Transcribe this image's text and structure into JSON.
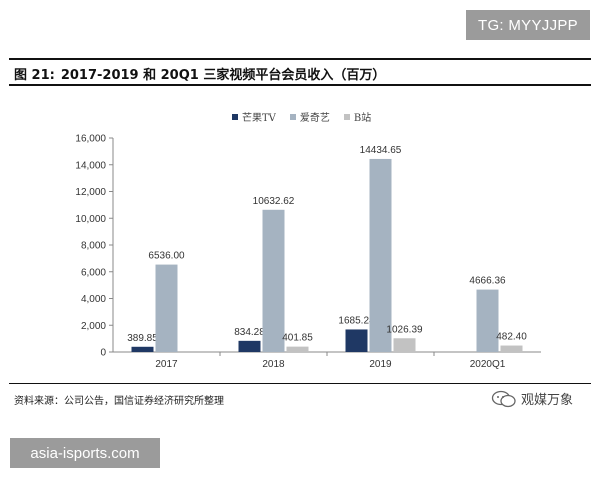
{
  "watermark_top": "TG: MYYJJPP",
  "watermark_bottom": "asia-isports.com",
  "figure": {
    "number": "图 21:",
    "title": "2017-2019 和 20Q1 三家视频平台会员收入（百万）"
  },
  "source_note": "资料来源：公司公告，国信证券经济研究所整理",
  "brand": "观媒万象",
  "chart_data": {
    "type": "bar",
    "title": "",
    "xlabel": "",
    "ylabel": "",
    "categories": [
      "2017",
      "2018",
      "2019",
      "2020Q1"
    ],
    "series": [
      {
        "name": "芒果TV",
        "values": [
          389.85,
          834.28,
          1685.24,
          null
        ],
        "labels": [
          "389.85",
          "834.28",
          "1685.24",
          ""
        ],
        "color": "#1f3864"
      },
      {
        "name": "爱奇艺",
        "values": [
          6536.0,
          10632.62,
          14434.65,
          4666.36
        ],
        "labels": [
          "6536.00",
          "10632.62",
          "14434.65",
          "4666.36"
        ],
        "color": "#a5b3c1"
      },
      {
        "name": "B站",
        "values": [
          null,
          401.85,
          1026.39,
          482.4
        ],
        "labels": [
          "",
          "401.85",
          "1026.39",
          "482.40"
        ],
        "color": "#c2c2c2"
      }
    ],
    "ylim": [
      0,
      16000
    ],
    "yticks": [
      0,
      2000,
      4000,
      6000,
      8000,
      10000,
      12000,
      14000,
      16000
    ],
    "ytick_labels": [
      "0",
      "2,000",
      "4,000",
      "6,000",
      "8,000",
      "10,000",
      "12,000",
      "14,000",
      "16,000"
    ],
    "legend_position": "top-center",
    "grid": false
  }
}
